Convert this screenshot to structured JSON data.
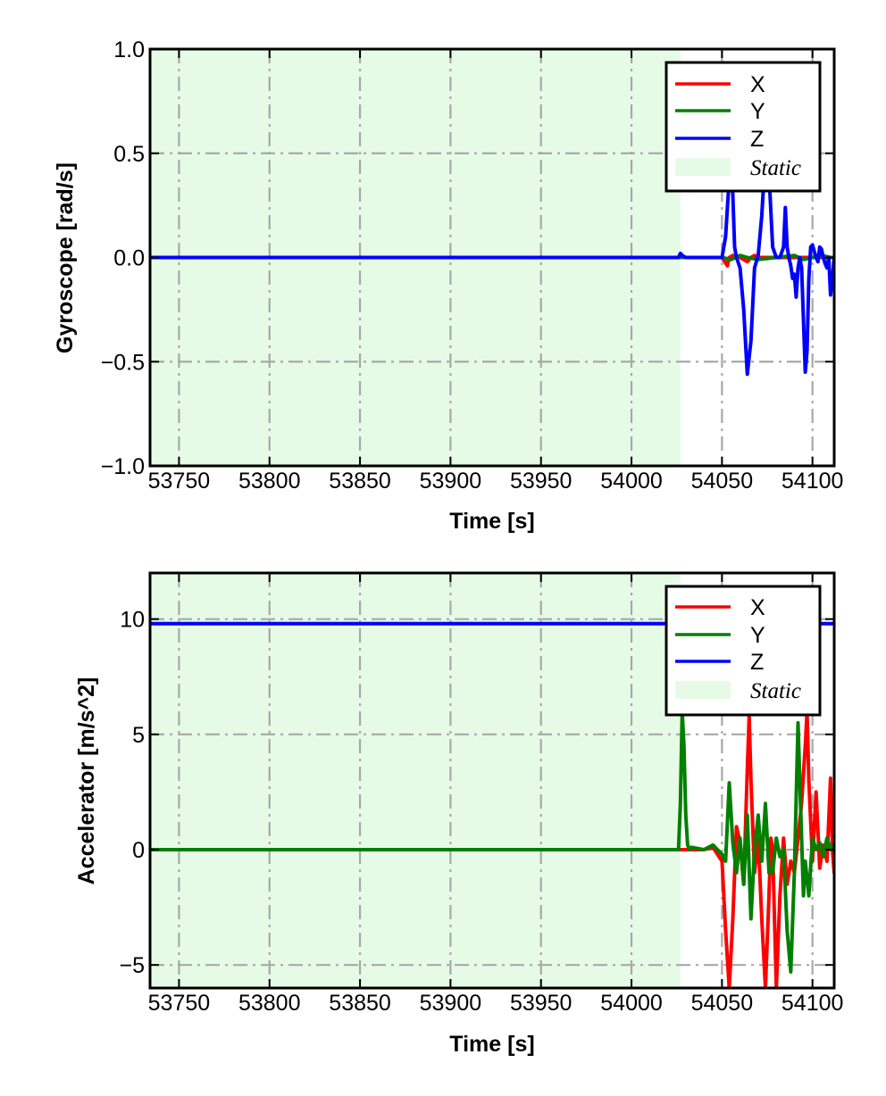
{
  "chart_data": [
    {
      "type": "line",
      "xlabel": "Time [s]",
      "ylabel": "Gyroscope [rad/s]",
      "xlim": [
        53734,
        54112
      ],
      "ylim": [
        -1.0,
        1.0
      ],
      "xticks": [
        53750,
        53800,
        53850,
        53900,
        53950,
        54000,
        54050,
        54100
      ],
      "xtick_labels": [
        "53750",
        "53800",
        "53850",
        "53900",
        "53950",
        "54000",
        "54050",
        "54100"
      ],
      "yticks": [
        -1.0,
        -0.5,
        0.0,
        0.5,
        1.0
      ],
      "ytick_labels": [
        "−1.0",
        "−0.5",
        "0.0",
        "0.5",
        "1.0"
      ],
      "grid": true,
      "legend_position": "top-right",
      "static_region": {
        "label": "Static",
        "x_start": 53734,
        "x_end": 54027,
        "color": "#e6fbe6"
      },
      "series": [
        {
          "name": "X",
          "color": "#ff0000",
          "x": [
            53734,
            54027,
            54050,
            54053,
            54054,
            54056,
            54060,
            54064,
            54066,
            54068,
            54070,
            54075,
            54085,
            54090,
            54095,
            54100,
            54105,
            54110,
            54112
          ],
          "y": [
            0.0,
            0.0,
            0.0,
            -0.04,
            0.0,
            0.01,
            0.0,
            -0.02,
            0.0,
            0.01,
            0.0,
            0.0,
            0.0,
            0.0,
            0.0,
            0.0,
            0.0,
            0.0,
            0.0
          ]
        },
        {
          "name": "Y",
          "color": "#008000",
          "x": [
            53734,
            54027,
            54050,
            54055,
            54060,
            54064,
            54070,
            54080,
            54090,
            54095,
            54100,
            54105,
            54110,
            54112
          ],
          "y": [
            0.0,
            0.0,
            0.0,
            -0.01,
            0.01,
            0.0,
            -0.01,
            0.0,
            0.01,
            -0.01,
            0.0,
            0.01,
            0.0,
            0.0
          ]
        },
        {
          "name": "Z",
          "color": "#0000ff",
          "x": [
            53734,
            54026,
            54027,
            54028,
            54030,
            54050,
            54052,
            54054,
            54055,
            54056,
            54057,
            54058,
            54060,
            54062,
            54064,
            54066,
            54068,
            54070,
            54072,
            54074,
            54075,
            54076,
            54078,
            54080,
            54082,
            54084,
            54085,
            54086,
            54087,
            54088,
            54089,
            54090,
            54091,
            54092,
            54093,
            54094,
            54095,
            54096,
            54097,
            54098,
            54099,
            54100,
            54101,
            54102,
            54103,
            54104,
            54105,
            54106,
            54107,
            54108,
            54109,
            54110,
            54111,
            54112
          ],
          "y": [
            0.0,
            0.0,
            0.02,
            0.01,
            0.0,
            0.0,
            0.1,
            0.38,
            0.45,
            0.3,
            0.05,
            0.0,
            -0.05,
            -0.25,
            -0.56,
            -0.4,
            -0.05,
            0.01,
            0.2,
            0.5,
            0.58,
            0.4,
            0.05,
            0.0,
            0.0,
            0.05,
            0.24,
            0.05,
            0.0,
            -0.04,
            -0.1,
            -0.08,
            -0.19,
            -0.05,
            0.0,
            -0.05,
            -0.3,
            -0.55,
            -0.45,
            -0.1,
            0.05,
            0.06,
            0.03,
            0.0,
            -0.02,
            0.05,
            0.04,
            0.0,
            -0.03,
            -0.05,
            0.0,
            -0.18,
            -0.1,
            0.0
          ]
        }
      ]
    },
    {
      "type": "line",
      "xlabel": "Time [s]",
      "ylabel": "Accelerator [m/s^2]",
      "xlim": [
        53734,
        54112
      ],
      "ylim": [
        -6.0,
        12.0
      ],
      "xticks": [
        53750,
        53800,
        53850,
        53900,
        53950,
        54000,
        54050,
        54100
      ],
      "xtick_labels": [
        "53750",
        "53800",
        "53850",
        "53900",
        "53950",
        "54000",
        "54050",
        "54100"
      ],
      "yticks": [
        -5,
        0,
        5,
        10
      ],
      "ytick_labels": [
        "−5",
        "0",
        "5",
        "10"
      ],
      "grid": true,
      "legend_position": "top-right",
      "static_region": {
        "label": "Static",
        "x_start": 53734,
        "x_end": 54027,
        "color": "#e6fbe6"
      },
      "series": [
        {
          "name": "X",
          "color": "#ff0000",
          "x": [
            53734,
            54027,
            54030,
            54040,
            54045,
            54050,
            54052,
            54054,
            54056,
            54058,
            54060,
            54062,
            54064,
            54065,
            54066,
            54068,
            54070,
            54072,
            54074,
            54076,
            54077,
            54078,
            54080,
            54082,
            54084,
            54086,
            54088,
            54090,
            54092,
            54094,
            54096,
            54097,
            54098,
            54100,
            54102,
            54104,
            54106,
            54108,
            54110,
            54111,
            54112
          ],
          "y": [
            0.0,
            0.0,
            0.0,
            0.0,
            0.1,
            -0.5,
            -3.5,
            -6.0,
            -3.0,
            1.0,
            0.3,
            -1.5,
            3.5,
            5.8,
            3.0,
            -1.0,
            0.5,
            -3.0,
            -6.0,
            -2.0,
            0.5,
            0.0,
            -6.0,
            -2.0,
            0.5,
            -1.5,
            -0.5,
            -1.0,
            0.5,
            2.0,
            4.5,
            6.0,
            3.0,
            -0.5,
            2.5,
            -0.8,
            0.2,
            -0.5,
            3.1,
            0.0,
            -1.0
          ]
        },
        {
          "name": "Y",
          "color": "#008000",
          "x": [
            53734,
            54026,
            54027,
            54028,
            54029,
            54030,
            54031,
            54032,
            54033,
            54040,
            54045,
            54050,
            54052,
            54054,
            54056,
            54058,
            54060,
            54062,
            54064,
            54066,
            54068,
            54070,
            54072,
            54074,
            54076,
            54078,
            54080,
            54082,
            54084,
            54086,
            54088,
            54090,
            54092,
            54094,
            54095,
            54096,
            54098,
            54100,
            54102,
            54104,
            54106,
            54108,
            54110,
            54112
          ],
          "y": [
            0.0,
            0.0,
            2.0,
            6.0,
            4.5,
            1.5,
            0.2,
            0.0,
            0.1,
            0.0,
            0.2,
            -0.2,
            -0.5,
            2.9,
            0.3,
            -1.0,
            0.5,
            -1.5,
            1.5,
            -3.0,
            0.0,
            1.5,
            -0.5,
            2.0,
            -1.0,
            -1.0,
            0.5,
            -0.3,
            0.0,
            -3.5,
            -5.3,
            -1.0,
            5.5,
            0.5,
            -2.0,
            -0.5,
            -2.0,
            0.5,
            0.0,
            0.3,
            -0.3,
            0.5,
            0.0,
            0.2
          ]
        },
        {
          "name": "Z",
          "color": "#0000ff",
          "x": [
            53734,
            53760,
            53800,
            53850,
            53900,
            53950,
            54000,
            54020,
            54050,
            54100,
            54112
          ],
          "y": [
            9.8,
            9.8,
            9.8,
            9.8,
            9.8,
            9.8,
            9.8,
            9.8,
            9.8,
            9.8,
            9.8
          ]
        }
      ]
    }
  ]
}
